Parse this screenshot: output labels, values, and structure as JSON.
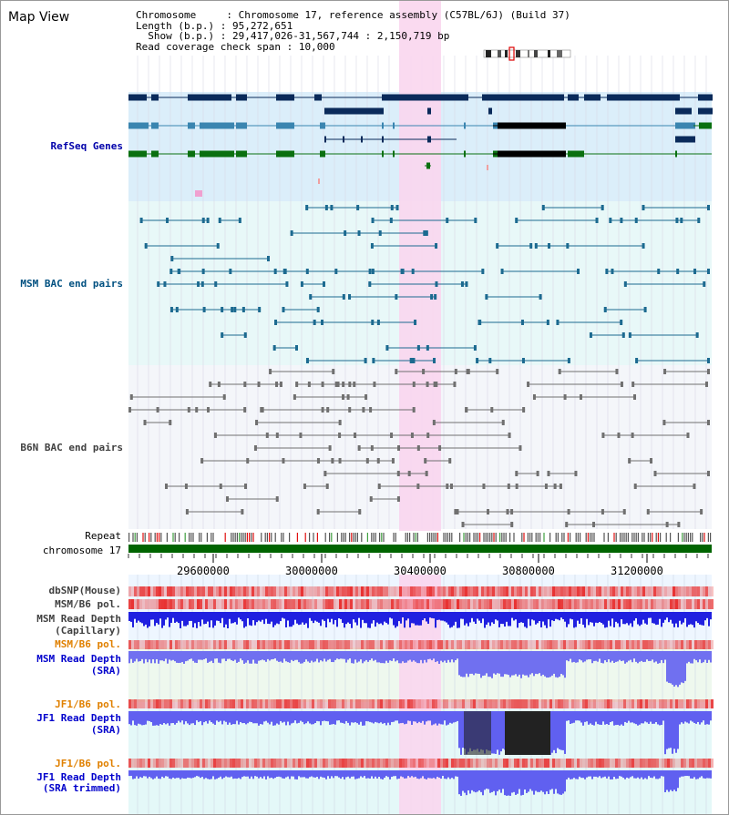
{
  "title": "Map View",
  "info": {
    "chromosome_key": "Chromosome",
    "chromosome_val": "Chromosome 17, reference assembly (C57BL/6J) (Build 37)",
    "length_key": "Length (b.p.)",
    "length_val": "95,272,651",
    "show_key": "Show (b.p.)",
    "show_val": "29,417,026-31,567,744 : 2,150,719 bp",
    "coverage_key": "Read coverage check span",
    "coverage_val": "10,000"
  },
  "tracks": {
    "refseq": "RefSeq Genes",
    "msm_bac": "MSM BAC end pairs",
    "b6n_bac": "B6N BAC end pairs",
    "repeat": "Repeat",
    "chromosome": "chromosome 17",
    "dbsnp": "dbSNP(Mouse)",
    "msm_b6_pol_1": "MSM/B6 pol.",
    "msm_depth_cap_1": "MSM Read Depth",
    "msm_depth_cap_2": "(Capillary)",
    "msm_b6_pol_2": "MSM/B6 pol.",
    "msm_depth_sra_1": "MSM Read Depth",
    "msm_depth_sra_2": "(SRA)",
    "jf1_b6_pol_1": "JF1/B6 pol.",
    "jf1_depth_sra_1": "JF1 Read Depth",
    "jf1_depth_sra_2": "(SRA)",
    "jf1_b6_pol_2": "JF1/B6 pol.",
    "jf1_depth_trim_1": "JF1 Read Depth",
    "jf1_depth_trim_2": "(SRA trimmed)"
  },
  "axis": {
    "ticks": [
      "29600000",
      "30000000",
      "30400000",
      "30800000",
      "31200000"
    ]
  },
  "colors": {
    "refseq_label": "#0000aa",
    "msm_label": "#005080",
    "b6n_label": "#404040",
    "orange_label": "#e08000",
    "blue_label": "#0000cc",
    "highlight": "#f9d6ee",
    "chrom_green": "#006400"
  }
}
